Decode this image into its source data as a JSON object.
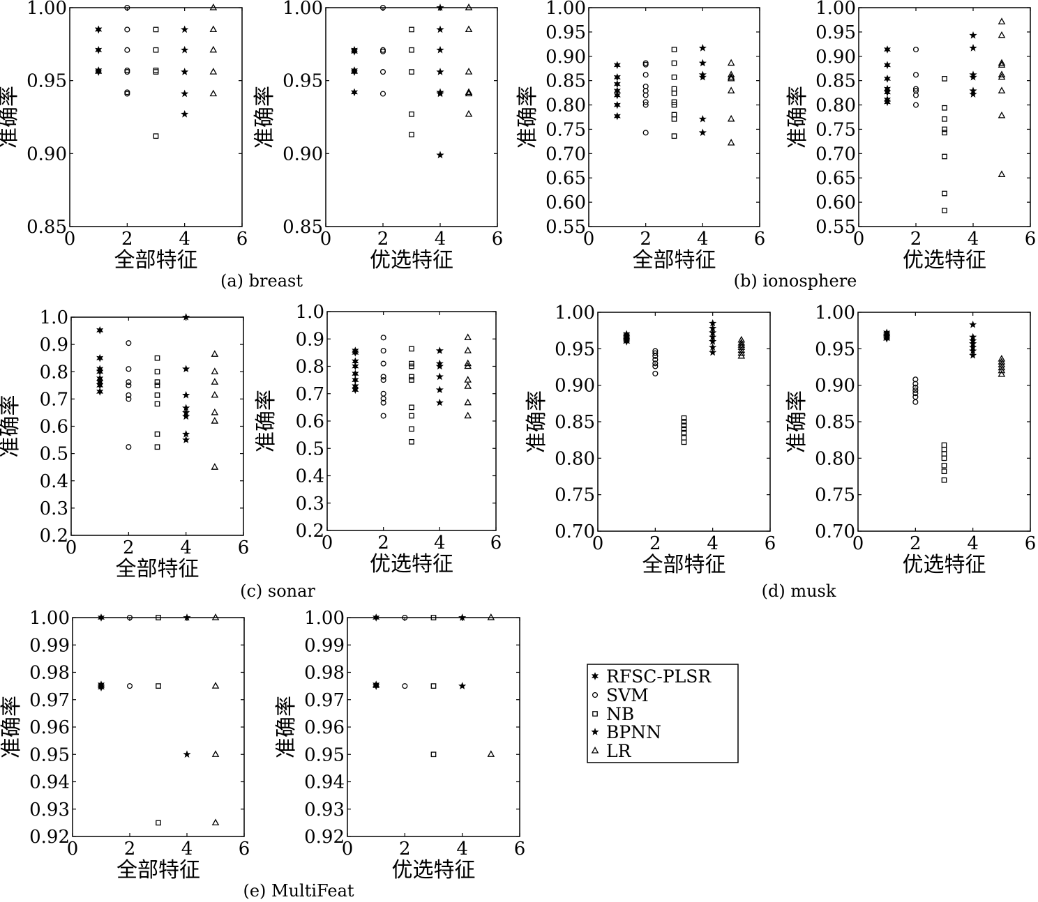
{
  "colors": {
    "ink": "#000000",
    "background": "#ffffff"
  },
  "legend": {
    "items": [
      {
        "label": "RFSC-PLSR",
        "marker": "hexagram"
      },
      {
        "label": "SVM",
        "marker": "circle"
      },
      {
        "label": "NB",
        "marker": "square"
      },
      {
        "label": "BPNN",
        "marker": "pentagram"
      },
      {
        "label": "LR",
        "marker": "triangle"
      }
    ]
  },
  "captions": {
    "breast": "(a) breast",
    "ionosphere": "(b) ionosphere",
    "sonar": "(c) sonar",
    "musk": "(d) musk",
    "multifeat": "(e) MultiFeat"
  },
  "chart_data": [
    {
      "type": "scatter",
      "dataset": "breast",
      "xlabel": "全部特征",
      "ylabel": "准确率",
      "xlim": [
        0,
        6
      ],
      "ylim": [
        0.85,
        1.0
      ],
      "xticks": [
        "0",
        "2",
        "4",
        "6"
      ],
      "yticks": [
        "0.85",
        "0.90",
        "0.95",
        "1.00"
      ],
      "series": [
        {
          "name": "RFSC-PLSR",
          "x": 1,
          "values": [
            0.985,
            0.985,
            0.971,
            0.956,
            0.957
          ]
        },
        {
          "name": "SVM",
          "x": 2,
          "values": [
            1.0,
            0.985,
            0.971,
            0.957,
            0.956,
            0.942,
            0.941
          ]
        },
        {
          "name": "NB",
          "x": 3,
          "values": [
            0.985,
            0.971,
            0.957,
            0.956,
            0.912
          ]
        },
        {
          "name": "BPNN",
          "x": 4,
          "values": [
            0.985,
            0.971,
            0.956,
            0.941,
            0.927
          ]
        },
        {
          "name": "LR",
          "x": 5,
          "values": [
            1.0,
            0.985,
            0.971,
            0.956,
            0.941
          ]
        }
      ]
    },
    {
      "type": "scatter",
      "dataset": "breast",
      "xlabel": "优选特征",
      "ylabel": "准确率",
      "xlim": [
        0,
        6
      ],
      "ylim": [
        0.85,
        1.0
      ],
      "xticks": [
        "0",
        "2",
        "4",
        "6"
      ],
      "yticks": [
        "0.85",
        "0.90",
        "0.95",
        "1.00"
      ],
      "series": [
        {
          "name": "RFSC-PLSR",
          "x": 1,
          "values": [
            0.971,
            0.97,
            0.957,
            0.956,
            0.942
          ]
        },
        {
          "name": "SVM",
          "x": 2,
          "values": [
            1.0,
            0.971,
            0.97,
            0.956,
            0.941
          ]
        },
        {
          "name": "NB",
          "x": 3,
          "values": [
            0.985,
            0.971,
            0.956,
            0.927,
            0.913
          ]
        },
        {
          "name": "BPNN",
          "x": 4,
          "values": [
            1.0,
            0.985,
            0.971,
            0.956,
            0.942,
            0.941,
            0.899
          ]
        },
        {
          "name": "LR",
          "x": 5,
          "values": [
            1.0,
            0.985,
            0.956,
            0.942,
            0.941,
            0.927
          ]
        }
      ]
    },
    {
      "type": "scatter",
      "dataset": "ionosphere",
      "xlabel": "全部特征",
      "ylabel": "准确率",
      "xlim": [
        0,
        6
      ],
      "ylim": [
        0.55,
        1.0
      ],
      "xticks": [
        "0",
        "2",
        "4",
        "6"
      ],
      "yticks": [
        "0.55",
        "0.60",
        "0.65",
        "0.70",
        "0.75",
        "0.80",
        "0.85",
        "0.90",
        "0.95",
        "1.00"
      ],
      "series": [
        {
          "name": "RFSC-PLSR",
          "x": 1,
          "values": [
            0.882,
            0.857,
            0.843,
            0.829,
            0.82,
            0.8,
            0.777
          ]
        },
        {
          "name": "SVM",
          "x": 2,
          "values": [
            0.886,
            0.883,
            0.862,
            0.838,
            0.829,
            0.82,
            0.806,
            0.8,
            0.743
          ]
        },
        {
          "name": "NB",
          "x": 3,
          "values": [
            0.914,
            0.886,
            0.857,
            0.833,
            0.824,
            0.806,
            0.8,
            0.78,
            0.771,
            0.736
          ]
        },
        {
          "name": "BPNN",
          "x": 4,
          "values": [
            0.917,
            0.886,
            0.862,
            0.857,
            0.771,
            0.743
          ]
        },
        {
          "name": "LR",
          "x": 5,
          "values": [
            0.886,
            0.862,
            0.857,
            0.854,
            0.829,
            0.771,
            0.722
          ]
        }
      ]
    },
    {
      "type": "scatter",
      "dataset": "ionosphere",
      "xlabel": "优选特征",
      "ylabel": "准确率",
      "xlim": [
        0,
        6
      ],
      "ylim": [
        0.55,
        1.0
      ],
      "xticks": [
        "0",
        "2",
        "4",
        "6"
      ],
      "yticks": [
        "0.55",
        "0.60",
        "0.65",
        "0.70",
        "0.75",
        "0.80",
        "0.85",
        "0.90",
        "0.95",
        "1.00"
      ],
      "series": [
        {
          "name": "RFSC-PLSR",
          "x": 1,
          "values": [
            0.914,
            0.882,
            0.854,
            0.833,
            0.826,
            0.811,
            0.806
          ]
        },
        {
          "name": "SVM",
          "x": 2,
          "values": [
            0.914,
            0.862,
            0.833,
            0.829,
            0.82,
            0.8
          ]
        },
        {
          "name": "NB",
          "x": 3,
          "values": [
            0.854,
            0.794,
            0.771,
            0.75,
            0.743,
            0.694,
            0.618,
            0.583
          ]
        },
        {
          "name": "BPNN",
          "x": 4,
          "values": [
            0.943,
            0.917,
            0.862,
            0.857,
            0.829,
            0.822
          ]
        },
        {
          "name": "LR",
          "x": 5,
          "values": [
            0.971,
            0.943,
            0.886,
            0.882,
            0.862,
            0.857,
            0.829,
            0.778,
            0.657
          ]
        }
      ]
    },
    {
      "type": "scatter",
      "dataset": "sonar",
      "xlabel": "全部特征",
      "ylabel": "准确率",
      "xlim": [
        0,
        6
      ],
      "ylim": [
        0.2,
        1.0
      ],
      "xticks": [
        "0",
        "2",
        "4",
        "6"
      ],
      "yticks": [
        "0.2",
        "0.3",
        "0.4",
        "0.5",
        "0.6",
        "0.7",
        "0.8",
        "0.9",
        "1.0"
      ],
      "series": [
        {
          "name": "RFSC-PLSR",
          "x": 1,
          "values": [
            0.952,
            0.85,
            0.81,
            0.8,
            0.775,
            0.762,
            0.75,
            0.727
          ]
        },
        {
          "name": "SVM",
          "x": 2,
          "values": [
            0.905,
            0.81,
            0.762,
            0.75,
            0.714,
            0.7,
            0.524
          ]
        },
        {
          "name": "NB",
          "x": 3,
          "values": [
            0.85,
            0.8,
            0.762,
            0.75,
            0.714,
            0.682,
            0.571,
            0.524
          ]
        },
        {
          "name": "BPNN",
          "x": 4,
          "values": [
            1.0,
            0.81,
            0.714,
            0.667,
            0.65,
            0.636,
            0.571,
            0.55
          ]
        },
        {
          "name": "LR",
          "x": 5,
          "values": [
            0.864,
            0.8,
            0.762,
            0.714,
            0.65,
            0.619,
            0.45
          ]
        }
      ]
    },
    {
      "type": "scatter",
      "dataset": "sonar",
      "xlabel": "优选特征",
      "ylabel": "准确率",
      "xlim": [
        0,
        6
      ],
      "ylim": [
        0.2,
        1.0
      ],
      "xticks": [
        "0",
        "2",
        "4",
        "6"
      ],
      "yticks": [
        "0.2",
        "0.3",
        "0.4",
        "0.5",
        "0.6",
        "0.7",
        "0.8",
        "0.9",
        "1.0"
      ],
      "series": [
        {
          "name": "RFSC-PLSR",
          "x": 1,
          "values": [
            0.857,
            0.85,
            0.818,
            0.8,
            0.773,
            0.75,
            0.727,
            0.714
          ]
        },
        {
          "name": "SVM",
          "x": 2,
          "values": [
            0.905,
            0.857,
            0.81,
            0.762,
            0.75,
            0.7,
            0.682,
            0.667,
            0.619
          ]
        },
        {
          "name": "NB",
          "x": 3,
          "values": [
            0.864,
            0.81,
            0.8,
            0.762,
            0.75,
            0.65,
            0.619,
            0.571,
            0.524
          ]
        },
        {
          "name": "BPNN",
          "x": 4,
          "values": [
            0.857,
            0.81,
            0.8,
            0.762,
            0.714,
            0.667
          ]
        },
        {
          "name": "LR",
          "x": 5,
          "values": [
            0.905,
            0.857,
            0.81,
            0.8,
            0.75,
            0.727,
            0.667,
            0.619
          ]
        }
      ]
    },
    {
      "type": "scatter",
      "dataset": "musk",
      "xlabel": "全部特征",
      "ylabel": "准确率",
      "xlim": [
        0,
        6
      ],
      "ylim": [
        0.7,
        1.0
      ],
      "xticks": [
        "0",
        "2",
        "4",
        "6"
      ],
      "yticks": [
        "0.70",
        "0.75",
        "0.80",
        "0.85",
        "0.90",
        "0.95",
        "1.00"
      ],
      "series": [
        {
          "name": "RFSC-PLSR",
          "x": 1,
          "values": [
            0.97,
            0.968,
            0.966,
            0.964,
            0.962,
            0.96
          ]
        },
        {
          "name": "SVM",
          "x": 2,
          "values": [
            0.947,
            0.944,
            0.94,
            0.935,
            0.93,
            0.926,
            0.916
          ]
        },
        {
          "name": "NB",
          "x": 3,
          "values": [
            0.855,
            0.85,
            0.845,
            0.84,
            0.835,
            0.828,
            0.822
          ]
        },
        {
          "name": "BPNN",
          "x": 4,
          "values": [
            0.985,
            0.978,
            0.972,
            0.966,
            0.96,
            0.952,
            0.945
          ]
        },
        {
          "name": "LR",
          "x": 5,
          "values": [
            0.962,
            0.958,
            0.955,
            0.952,
            0.948,
            0.944,
            0.94
          ]
        }
      ]
    },
    {
      "type": "scatter",
      "dataset": "musk",
      "xlabel": "优选特征",
      "ylabel": "准确率",
      "xlim": [
        0,
        6
      ],
      "ylim": [
        0.7,
        1.0
      ],
      "xticks": [
        "0",
        "2",
        "4",
        "6"
      ],
      "yticks": [
        "0.70",
        "0.75",
        "0.80",
        "0.85",
        "0.90",
        "0.95",
        "1.00"
      ],
      "series": [
        {
          "name": "RFSC-PLSR",
          "x": 1,
          "values": [
            0.972,
            0.97,
            0.968,
            0.966,
            0.964
          ]
        },
        {
          "name": "SVM",
          "x": 2,
          "values": [
            0.908,
            0.902,
            0.897,
            0.893,
            0.889,
            0.884,
            0.877
          ]
        },
        {
          "name": "NB",
          "x": 3,
          "values": [
            0.818,
            0.812,
            0.806,
            0.8,
            0.79,
            0.782,
            0.77
          ]
        },
        {
          "name": "BPNN",
          "x": 4,
          "values": [
            0.983,
            0.966,
            0.961,
            0.957,
            0.952,
            0.947,
            0.941
          ]
        },
        {
          "name": "LR",
          "x": 5,
          "values": [
            0.936,
            0.932,
            0.928,
            0.924,
            0.92,
            0.915
          ]
        }
      ]
    },
    {
      "type": "scatter",
      "dataset": "MultiFeat",
      "xlabel": "全部特征",
      "ylabel": "准确率",
      "xlim": [
        0,
        6
      ],
      "ylim": [
        0.92,
        1.0
      ],
      "xticks": [
        "0",
        "2",
        "4",
        "6"
      ],
      "yticks": [
        "0.92",
        "0.93",
        "0.94",
        "0.95",
        "0.96",
        "0.97",
        "0.98",
        "0.99",
        "1.00"
      ],
      "series": [
        {
          "name": "RFSC-PLSR",
          "x": 1,
          "values": [
            1.0,
            0.9755,
            0.975,
            0.9745
          ]
        },
        {
          "name": "SVM",
          "x": 2,
          "values": [
            1.0,
            0.975
          ]
        },
        {
          "name": "NB",
          "x": 3,
          "values": [
            1.0,
            0.975,
            0.925
          ]
        },
        {
          "name": "BPNN",
          "x": 4,
          "values": [
            1.0,
            0.95
          ]
        },
        {
          "name": "LR",
          "x": 5,
          "values": [
            1.0,
            0.975,
            0.95,
            0.925
          ]
        }
      ]
    },
    {
      "type": "scatter",
      "dataset": "MultiFeat",
      "xlabel": "优选特征",
      "ylabel": "准确率",
      "xlim": [
        0,
        6
      ],
      "ylim": [
        0.92,
        1.0
      ],
      "xticks": [
        "0",
        "2",
        "4",
        "6"
      ],
      "yticks": [
        "0.92",
        "0.93",
        "0.94",
        "0.95",
        "0.96",
        "0.97",
        "0.98",
        "0.99",
        "1.00"
      ],
      "series": [
        {
          "name": "RFSC-PLSR",
          "x": 1,
          "values": [
            1.0,
            0.9755,
            0.975
          ]
        },
        {
          "name": "SVM",
          "x": 2,
          "values": [
            1.0,
            0.975
          ]
        },
        {
          "name": "NB",
          "x": 3,
          "values": [
            1.0,
            0.975,
            0.95
          ]
        },
        {
          "name": "BPNN",
          "x": 4,
          "values": [
            1.0,
            0.975
          ]
        },
        {
          "name": "LR",
          "x": 5,
          "values": [
            1.0,
            0.95
          ]
        }
      ]
    }
  ]
}
